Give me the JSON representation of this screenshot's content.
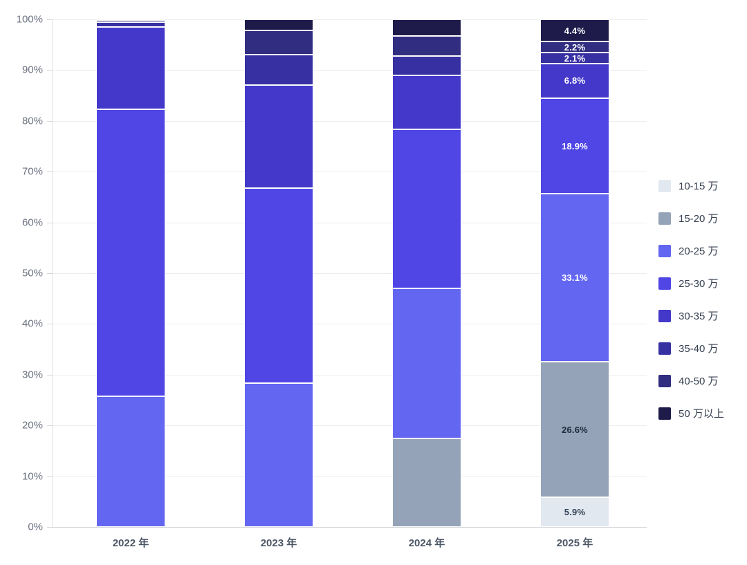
{
  "chart_data": {
    "type": "bar",
    "stacked": true,
    "percent": true,
    "title": "",
    "xlabel": "",
    "ylabel": "",
    "categories": [
      "2022 年",
      "2023 年",
      "2024 年",
      "2025 年"
    ],
    "series": [
      {
        "name": "10-15 万",
        "color": "#e2e8f0",
        "label_color": "#334155",
        "values": [
          0,
          0,
          0,
          5.9
        ]
      },
      {
        "name": "15-20 万",
        "color": "#94a3b8",
        "label_color": "#1e293b",
        "values": [
          0,
          0,
          17.4,
          26.6
        ]
      },
      {
        "name": "20-25 万",
        "color": "#6366f1",
        "label_color": "#ffffff",
        "values": [
          25.7,
          28.3,
          29.6,
          33.1
        ]
      },
      {
        "name": "25-30 万",
        "color": "#4f46e5",
        "label_color": "#ffffff",
        "values": [
          56.6,
          38.5,
          31.4,
          18.9
        ]
      },
      {
        "name": "30-35 万",
        "color": "#4338ca",
        "label_color": "#ffffff",
        "values": [
          16.2,
          20.2,
          10.6,
          6.8
        ]
      },
      {
        "name": "35-40 万",
        "color": "#3730a3",
        "label_color": "#ffffff",
        "values": [
          1.0,
          6.0,
          3.8,
          2.1
        ]
      },
      {
        "name": "40-50 万",
        "color": "#312e81",
        "label_color": "#ffffff",
        "values": [
          0.3,
          4.8,
          3.9,
          2.2
        ]
      },
      {
        "name": "50 万以上",
        "color": "#1e1b4b",
        "label_color": "#ffffff",
        "values": [
          0.2,
          2.2,
          3.3,
          4.4
        ]
      }
    ],
    "data_labels": {
      "category": "2025 年",
      "suffix": "%",
      "labels_2025": [
        "5.9%",
        "26.6%",
        "33.1%",
        "18.9%",
        "6.8%",
        "2.1%",
        "2.2%",
        "4.4%"
      ]
    },
    "yAxis": {
      "min": 0,
      "max": 100,
      "ticks": [
        "0%",
        "10%",
        "20%",
        "30%",
        "40%",
        "50%",
        "60%",
        "70%",
        "80%",
        "90%",
        "100%"
      ]
    },
    "legend": {
      "position": "right",
      "items": [
        "10-15 万",
        "15-20 万",
        "20-25 万",
        "25-30 万",
        "30-35 万",
        "35-40 万",
        "40-50 万",
        "50 万以上"
      ]
    },
    "grid": true
  }
}
